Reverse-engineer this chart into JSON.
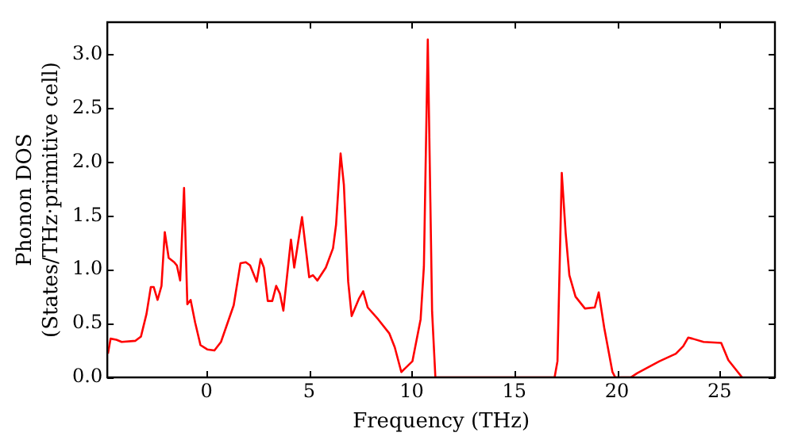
{
  "chart_data": {
    "type": "line",
    "xlabel": "Frequency (THz)",
    "ylabel": "Phonon DOS\n(States/THz·primitive cell)",
    "xlim": [
      -4.84,
      27.7
    ],
    "ylim": [
      0,
      3.3
    ],
    "xticks": [
      0,
      5,
      10,
      15,
      20,
      25
    ],
    "yticks": [
      {
        "value": 0,
        "label": "0.0"
      },
      0.5,
      {
        "value": 1,
        "label": "1.0"
      },
      1.5,
      {
        "value": 2,
        "label": "2.0"
      },
      2.5,
      {
        "value": 3,
        "label": "3.0"
      }
    ],
    "grid": false,
    "legend": false,
    "marker": "none",
    "line_style": "solid",
    "series": [
      {
        "color": "#ff0000",
        "x": [
          -4.81,
          -4.68,
          -4.4,
          -4.14,
          -3.47,
          -3.2,
          -2.93,
          -2.72,
          -2.58,
          -2.39,
          -2.2,
          -2.04,
          -1.85,
          -1.58,
          -1.45,
          -1.29,
          -1.1,
          -0.94,
          -0.78,
          -0.56,
          -0.3,
          0.03,
          0.38,
          0.7,
          1.32,
          1.65,
          1.91,
          2.12,
          2.44,
          2.63,
          2.79,
          2.98,
          3.2,
          3.39,
          3.57,
          3.74,
          4.11,
          4.27,
          4.65,
          5.0,
          5.18,
          5.4,
          5.81,
          6.16,
          6.31,
          6.53,
          6.69,
          6.9,
          7.07,
          7.42,
          7.63,
          7.85,
          8.36,
          8.9,
          9.17,
          9.49,
          10.03,
          10.43,
          10.59,
          10.78,
          10.99,
          11.15,
          16.96,
          17.1,
          17.31,
          17.5,
          17.68,
          17.98,
          18.44,
          18.92,
          19.11,
          19.38,
          19.78,
          19.92,
          20.67,
          20.99,
          22.07,
          22.87,
          23.23,
          23.47,
          23.68,
          24.22,
          25.08,
          25.43,
          26.1
        ],
        "values": [
          0.22,
          0.36,
          0.35,
          0.33,
          0.34,
          0.38,
          0.59,
          0.84,
          0.84,
          0.72,
          0.85,
          1.35,
          1.11,
          1.07,
          1.04,
          0.9,
          1.76,
          0.68,
          0.72,
          0.51,
          0.3,
          0.26,
          0.25,
          0.33,
          0.67,
          1.06,
          1.07,
          1.04,
          0.89,
          1.1,
          1.02,
          0.71,
          0.71,
          0.85,
          0.78,
          0.62,
          1.28,
          1.02,
          1.49,
          0.93,
          0.95,
          0.9,
          1.02,
          1.2,
          1.42,
          2.08,
          1.79,
          0.89,
          0.57,
          0.73,
          0.8,
          0.65,
          0.54,
          0.41,
          0.28,
          0.05,
          0.15,
          0.54,
          1.03,
          3.14,
          0.61,
          0.0,
          0.0,
          0.15,
          1.9,
          1.34,
          0.95,
          0.75,
          0.64,
          0.65,
          0.79,
          0.46,
          0.05,
          0.0,
          0.0,
          0.04,
          0.15,
          0.22,
          0.29,
          0.37,
          0.36,
          0.33,
          0.32,
          0.16,
          0.0
        ]
      }
    ]
  }
}
